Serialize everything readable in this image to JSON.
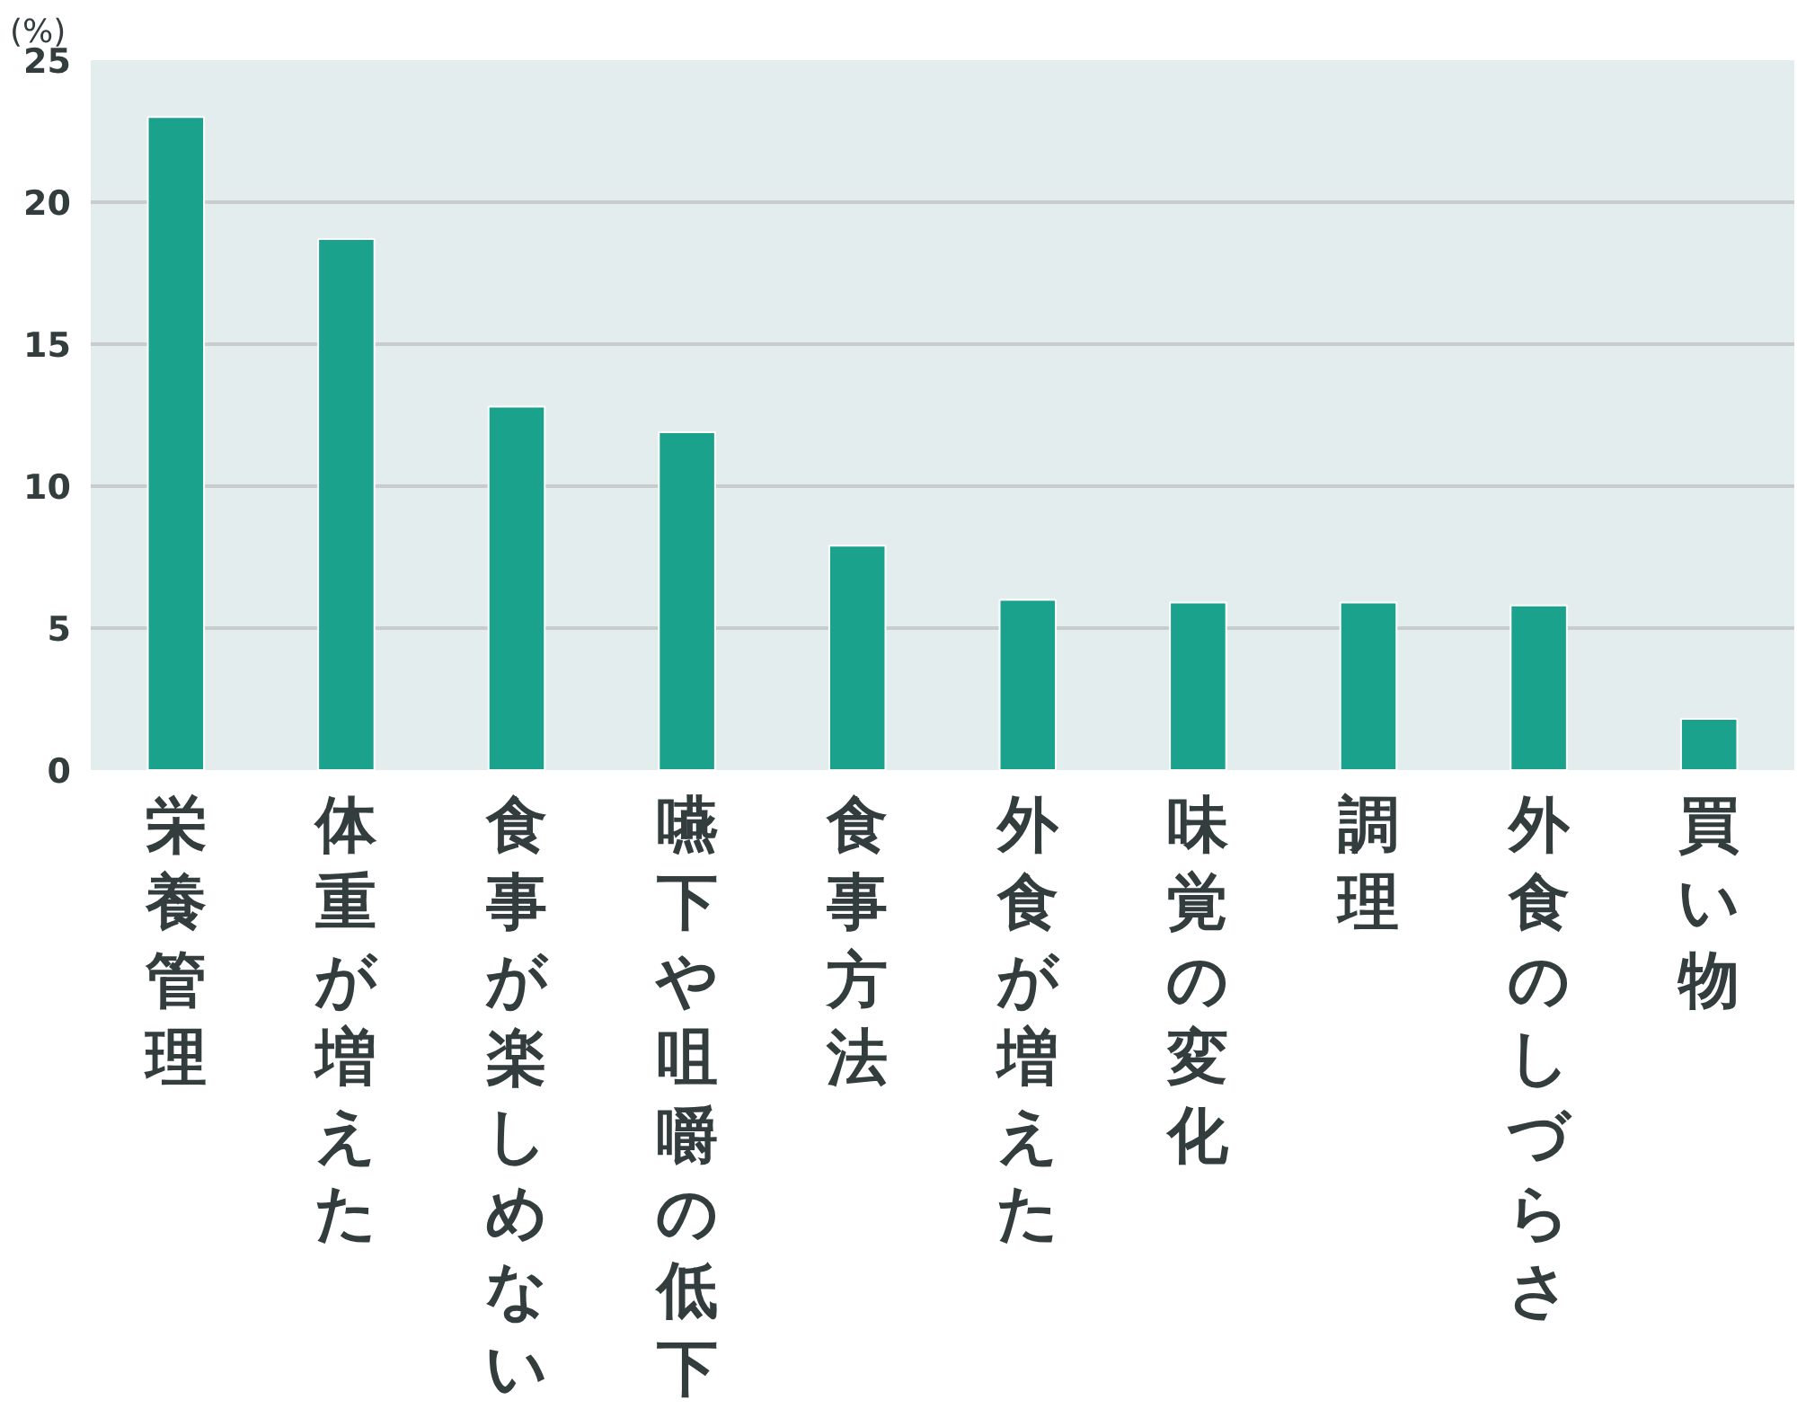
{
  "chart_data": {
    "type": "bar",
    "ylabel": "(%)",
    "categories": [
      "栄養管理",
      "体重が増えた",
      "食事が楽しめない",
      "嚥下や咀嚼の低下",
      "食事方法",
      "外食が増えた",
      "味覚の変化",
      "調理",
      "外食のしづらさ",
      "買い物"
    ],
    "values": [
      23,
      18.7,
      12.8,
      11.9,
      7.9,
      6.0,
      5.9,
      5.9,
      5.8,
      1.8
    ],
    "color": "#1aa28c",
    "ylim": [
      0,
      25
    ],
    "yticks": [
      0,
      5,
      10,
      15,
      20,
      25
    ],
    "grid": "y"
  }
}
